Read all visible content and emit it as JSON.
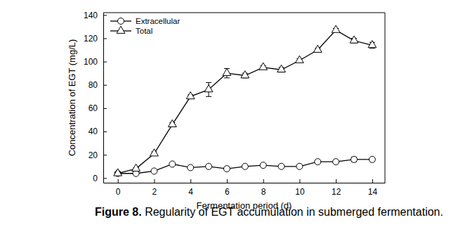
{
  "chart_data": {
    "type": "line",
    "title": "Figure 8. Regularity of EGT accumulation in submerged fermentation.",
    "x_label": "Fermentation period (d)",
    "y_label": "Concentration of EGT (mg/L)",
    "x": [
      0,
      1,
      2,
      3,
      4,
      5,
      6,
      7,
      8,
      9,
      10,
      11,
      12,
      13,
      14
    ],
    "series": [
      {
        "name": "Extracellular",
        "color": "#000000",
        "marker": "circle",
        "values": [
          4,
          4,
          6,
          12,
          9,
          10,
          8,
          10,
          11,
          10,
          10,
          14,
          14,
          16,
          16
        ],
        "errors": [
          1,
          1,
          1,
          1,
          1,
          1,
          1,
          1,
          1,
          1,
          1,
          1,
          1,
          2,
          1
        ]
      },
      {
        "name": "Total",
        "color": "#000000",
        "marker": "triangle",
        "values": [
          4,
          8,
          21,
          46,
          70,
          76,
          90,
          88,
          95,
          93,
          101,
          110,
          127,
          118,
          114
        ],
        "errors": [
          1,
          1,
          1.5,
          1.5,
          1.5,
          6,
          4,
          2,
          1.5,
          2,
          1.5,
          1.5,
          1.5,
          2,
          2.5
        ]
      }
    ],
    "xlim": [
      -0.8,
      14.7
    ],
    "xticks": [
      0,
      2,
      4,
      6,
      8,
      10,
      12,
      14
    ],
    "ylim": [
      -4,
      142
    ],
    "yticks": [
      0,
      20,
      40,
      60,
      80,
      100,
      120,
      140
    ],
    "legend": "upper left",
    "grid": false
  }
}
